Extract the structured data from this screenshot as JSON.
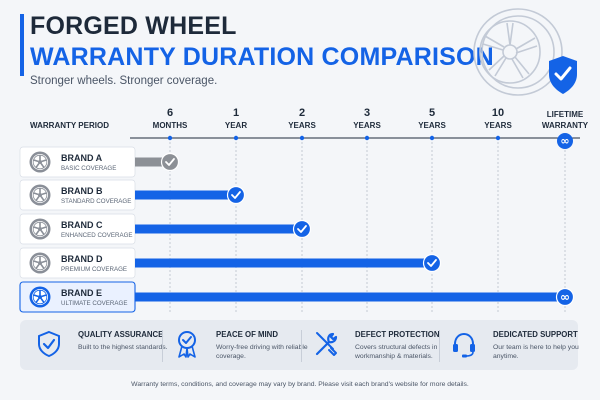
{
  "header": {
    "title_line1": "FORGED WHEEL",
    "title_line2": "WARRANTY DURATION COMPARISON",
    "subtitle": "Stronger wheels. Stronger coverage."
  },
  "colors": {
    "accent": "#1463e6",
    "gray_bar": "#8c9096",
    "dark_text": "#1e2a3a"
  },
  "chart_data": {
    "type": "bar",
    "orientation": "horizontal",
    "axis_label": "WARRANTY PERIOD",
    "ticks": [
      {
        "top": "6",
        "bottom": "MONTHS"
      },
      {
        "top": "1",
        "bottom": "YEAR"
      },
      {
        "top": "2",
        "bottom": "YEARS"
      },
      {
        "top": "3",
        "bottom": "YEARS"
      },
      {
        "top": "5",
        "bottom": "YEARS"
      },
      {
        "top": "10",
        "bottom": "YEARS"
      },
      {
        "top": "LIFETIME",
        "bottom": "WARRANTY"
      }
    ],
    "categories": [
      "BRAND A",
      "BRAND B",
      "BRAND C",
      "BRAND D",
      "BRAND E"
    ],
    "subtitles": [
      "BASIC COVERAGE",
      "STANDARD COVERAGE",
      "ENHANCED COVERAGE",
      "PREMIUM COVERAGE",
      "ULTIMATE COVERAGE"
    ],
    "values": [
      "6 months",
      "1 year",
      "2 years",
      "5 years",
      "lifetime"
    ],
    "tick_index": [
      0,
      1,
      2,
      4,
      6
    ],
    "marker": [
      "check",
      "check",
      "check",
      "check",
      "infinity"
    ],
    "highlighted": "BRAND E"
  },
  "features": [
    {
      "icon": "shield-check-icon",
      "title": "QUALITY ASSURANCE",
      "desc": "Built to the highest standards."
    },
    {
      "icon": "award-ribbon-icon",
      "title": "PEACE OF MIND",
      "desc": "Worry-free driving with reliable coverage."
    },
    {
      "icon": "wrench-screwdriver-icon",
      "title": "DEFECT PROTECTION",
      "desc": "Covers structural defects in workmanship & materials."
    },
    {
      "icon": "headset-icon",
      "title": "DEDICATED SUPPORT",
      "desc": "Our team is here to help you anytime."
    }
  ],
  "footnote": "Warranty terms, conditions, and coverage may vary by brand. Please visit each brand's website for more details."
}
